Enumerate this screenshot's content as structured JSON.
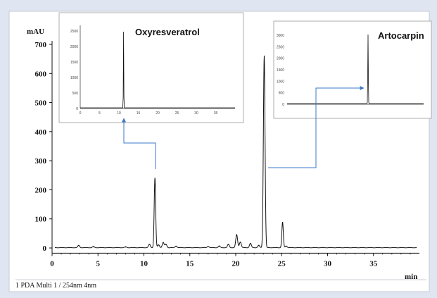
{
  "chart_data": {
    "type": "line",
    "ylabel": "mAU",
    "xlabel": "min",
    "xlim": [
      0,
      40
    ],
    "ylim": [
      -20,
      720
    ],
    "x_ticks": [
      0,
      5,
      10,
      15,
      20,
      25,
      30,
      35
    ],
    "y_ticks": [
      0,
      100,
      200,
      300,
      400,
      500,
      600,
      700
    ],
    "footer": "1  PDA Multi 1 / 254nm 4nm",
    "series": [
      {
        "peaks": [
          {
            "x": 2.9,
            "y": 8
          },
          {
            "x": 4.5,
            "y": 4
          },
          {
            "x": 8.0,
            "y": 3
          },
          {
            "x": 10.6,
            "y": 12
          },
          {
            "x": 11.2,
            "y": 240
          },
          {
            "x": 11.6,
            "y": 10
          },
          {
            "x": 12.1,
            "y": 18
          },
          {
            "x": 12.4,
            "y": 12
          },
          {
            "x": 13.5,
            "y": 6
          },
          {
            "x": 17.0,
            "y": 5
          },
          {
            "x": 18.2,
            "y": 6
          },
          {
            "x": 19.2,
            "y": 12
          },
          {
            "x": 20.1,
            "y": 45
          },
          {
            "x": 20.5,
            "y": 20
          },
          {
            "x": 21.6,
            "y": 15
          },
          {
            "x": 22.5,
            "y": 8
          },
          {
            "x": 23.1,
            "y": 660
          },
          {
            "x": 25.1,
            "y": 88
          },
          {
            "x": 25.5,
            "y": 6
          }
        ]
      }
    ],
    "insets": [
      {
        "title": "Oxyresveratrol",
        "peak_x": 11.2,
        "y_ticks": [
          "2500",
          "2000",
          "1500",
          "1000",
          "500",
          "0"
        ],
        "x_ticks": [
          "0",
          "5",
          "10",
          "15",
          "20",
          "25",
          "30",
          "35"
        ]
      },
      {
        "title": "Artocarpin",
        "peak_x": 23.1,
        "y_ticks": [
          "3000",
          "2500",
          "2000",
          "1500",
          "1000",
          "500",
          "0"
        ]
      }
    ]
  },
  "colors": {
    "background": "#dfe6f1",
    "plot_background": "#ffffff",
    "trace": "#111111",
    "arrow": "#3a78c8"
  }
}
